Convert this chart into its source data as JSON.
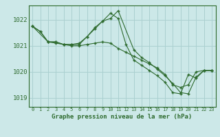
{
  "background_color": "#cce8e8",
  "grid_color": "#aad0d0",
  "line_color": "#2d6a2d",
  "title": "Graphe pression niveau de la mer (hPa)",
  "xlim": [
    -0.5,
    23.5
  ],
  "ylim": [
    1018.65,
    1022.55
  ],
  "yticks": [
    1019,
    1020,
    1021,
    1022
  ],
  "xticks": [
    0,
    1,
    2,
    3,
    4,
    5,
    6,
    7,
    8,
    9,
    10,
    11,
    12,
    13,
    14,
    15,
    16,
    17,
    18,
    19,
    20,
    21,
    22,
    23
  ],
  "series1_x": [
    0,
    1,
    2,
    3,
    4,
    5,
    6,
    7,
    8,
    9,
    10,
    11,
    12,
    13,
    14,
    15,
    16,
    17,
    18,
    19,
    20,
    21,
    22,
    23
  ],
  "series1_y": [
    1021.75,
    1021.55,
    1021.15,
    1021.1,
    1021.05,
    1021.0,
    1021.0,
    1021.05,
    1021.1,
    1021.15,
    1021.1,
    1020.9,
    1020.75,
    1020.6,
    1020.45,
    1020.3,
    1020.15,
    1019.9,
    1019.5,
    1019.4,
    1019.5,
    1020.0,
    1020.05,
    1020.05
  ],
  "series2_x": [
    0,
    1,
    2,
    3,
    4,
    5,
    6,
    7,
    8,
    9,
    10,
    11,
    12,
    13,
    14,
    15,
    16,
    17,
    18,
    19,
    20,
    21,
    22,
    23
  ],
  "series2_y": [
    1021.75,
    1021.55,
    1021.15,
    1021.15,
    1021.05,
    1021.05,
    1021.1,
    1021.35,
    1021.65,
    1021.95,
    1022.25,
    1022.05,
    1021.05,
    1020.45,
    1020.25,
    1020.05,
    1019.85,
    1019.6,
    1019.2,
    1019.15,
    1019.9,
    1019.75,
    1020.05,
    1020.05
  ],
  "series3_x": [
    0,
    2,
    3,
    4,
    5,
    6,
    7,
    8,
    9,
    10,
    11,
    13,
    14,
    15,
    16,
    17,
    18,
    19,
    20,
    21,
    22,
    23
  ],
  "series3_y": [
    1021.75,
    1021.15,
    1021.15,
    1021.05,
    1021.05,
    1021.05,
    1021.35,
    1021.7,
    1021.95,
    1022.05,
    1022.35,
    1020.85,
    1020.55,
    1020.35,
    1020.1,
    1019.85,
    1019.55,
    1019.2,
    1019.15,
    1019.8,
    1020.05,
    1020.05
  ]
}
